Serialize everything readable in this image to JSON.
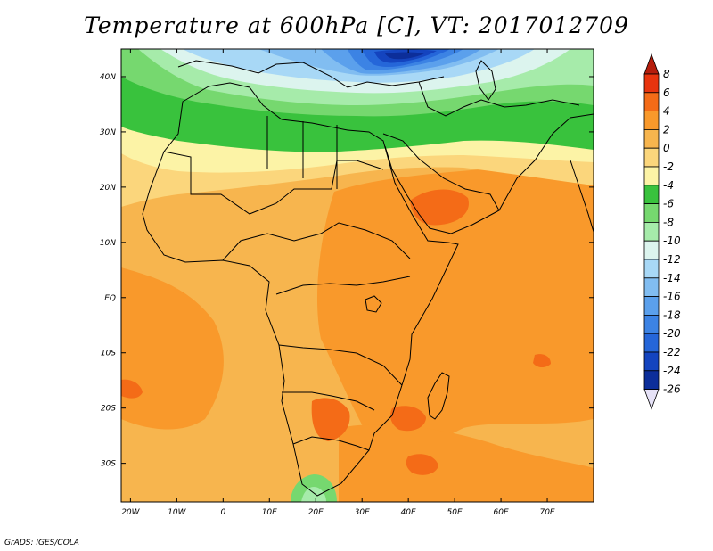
{
  "title": "Temperature at 600hPa [C], VT: 2017012709",
  "credit": "GrADS: IGES/COLA",
  "map": {
    "lon_range": [
      -22,
      80
    ],
    "lat_range": [
      -37,
      45
    ],
    "lon_ticks": [
      {
        "lon": -20,
        "label": "20W"
      },
      {
        "lon": -10,
        "label": "10W"
      },
      {
        "lon": 0,
        "label": "0"
      },
      {
        "lon": 10,
        "label": "10E"
      },
      {
        "lon": 20,
        "label": "20E"
      },
      {
        "lon": 30,
        "label": "30E"
      },
      {
        "lon": 40,
        "label": "40E"
      },
      {
        "lon": 50,
        "label": "50E"
      },
      {
        "lon": 60,
        "label": "60E"
      },
      {
        "lon": 70,
        "label": "70E"
      }
    ],
    "lat_ticks": [
      {
        "lat": 40,
        "label": "40N"
      },
      {
        "lat": 30,
        "label": "30N"
      },
      {
        "lat": 20,
        "label": "20N"
      },
      {
        "lat": 10,
        "label": "10N"
      },
      {
        "lat": 0,
        "label": "EQ"
      },
      {
        "lat": -10,
        "label": "10S"
      },
      {
        "lat": -20,
        "label": "20S"
      },
      {
        "lat": -30,
        "label": "30S"
      }
    ],
    "background_color": "#f7b54e"
  },
  "colorbar": {
    "labels": [
      "8",
      "6",
      "4",
      "2",
      "0",
      "-2",
      "-4",
      "-6",
      "-8",
      "-10",
      "-12",
      "-14",
      "-16",
      "-18",
      "-20",
      "-22",
      "-24",
      "-26"
    ],
    "colors": [
      "#e8340e",
      "#f46b17",
      "#f9992b",
      "#f7b54e",
      "#fbd67c",
      "#fcf3a6",
      "#39c23d",
      "#76d86f",
      "#a6ebaa",
      "#dcf4ee",
      "#a8d8f6",
      "#81bdf1",
      "#5ba0ec",
      "#3c83e4",
      "#2566d9",
      "#1444bf",
      "#0c2e9a"
    ],
    "top_arrow_color": "#b51d0c",
    "bottom_arrow_color": "#e6e2f7"
  }
}
